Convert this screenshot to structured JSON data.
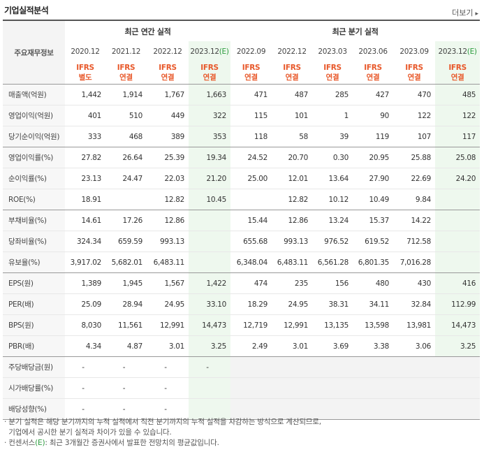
{
  "header": {
    "title": "기업실적분석",
    "more_label": "더보기",
    "more_arrow": "▸"
  },
  "table": {
    "corner_label": "주요재무정보",
    "annual_group": "최근 연간 실적",
    "quarter_group": "최근 분기 실적",
    "columns": [
      {
        "date": "2020.12",
        "type1": "IFRS",
        "type2": "별도",
        "estimate": false
      },
      {
        "date": "2021.12",
        "type1": "IFRS",
        "type2": "연결",
        "estimate": false
      },
      {
        "date": "2022.12",
        "type1": "IFRS",
        "type2": "연결",
        "estimate": false
      },
      {
        "date": "2023.12",
        "est_mark": "(E)",
        "type1": "IFRS",
        "type2": "연결",
        "estimate": true
      },
      {
        "date": "2022.09",
        "type1": "IFRS",
        "type2": "연결",
        "estimate": false
      },
      {
        "date": "2022.12",
        "type1": "IFRS",
        "type2": "연결",
        "estimate": false
      },
      {
        "date": "2023.03",
        "type1": "IFRS",
        "type2": "연결",
        "estimate": false
      },
      {
        "date": "2023.06",
        "type1": "IFRS",
        "type2": "연결",
        "estimate": false
      },
      {
        "date": "2023.09",
        "type1": "IFRS",
        "type2": "연결",
        "estimate": false
      },
      {
        "date": "2023.12",
        "est_mark": "(E)",
        "type1": "IFRS",
        "type2": "연결",
        "estimate": true
      }
    ],
    "rows": [
      {
        "label": "매출액(억원)",
        "values": [
          "1,442",
          "1,914",
          "1,767",
          "1,663",
          "471",
          "487",
          "285",
          "427",
          "470",
          "485"
        ]
      },
      {
        "label": "영업이익(억원)",
        "values": [
          "401",
          "510",
          "449",
          "322",
          "115",
          "101",
          "1",
          "90",
          "122",
          "122"
        ]
      },
      {
        "label": "당기순이익(억원)",
        "values": [
          "333",
          "468",
          "389",
          "353",
          "118",
          "58",
          "39",
          "119",
          "107",
          "117"
        ]
      },
      {
        "label": "영업이익률(%)",
        "values": [
          "27.82",
          "26.64",
          "25.39",
          "19.34",
          "24.52",
          "20.70",
          "0.30",
          "20.95",
          "25.88",
          "25.08"
        ]
      },
      {
        "label": "순이익률(%)",
        "values": [
          "23.13",
          "24.47",
          "22.03",
          "21.20",
          "25.00",
          "12.01",
          "13.64",
          "27.90",
          "22.69",
          "24.20"
        ]
      },
      {
        "label": "ROE(%)",
        "values": [
          "18.91",
          "",
          "12.82",
          "10.45",
          "",
          "12.82",
          "10.12",
          "10.49",
          "9.84",
          ""
        ]
      },
      {
        "label": "부채비율(%)",
        "values": [
          "14.61",
          "17.26",
          "12.86",
          "",
          "15.44",
          "12.86",
          "13.24",
          "15.37",
          "14.22",
          ""
        ]
      },
      {
        "label": "당좌비율(%)",
        "values": [
          "324.34",
          "659.59",
          "993.13",
          "",
          "655.68",
          "993.13",
          "976.52",
          "619.52",
          "712.58",
          ""
        ]
      },
      {
        "label": "유보율(%)",
        "values": [
          "3,917.02",
          "5,682.01",
          "6,483.11",
          "",
          "6,348.04",
          "6,483.11",
          "6,561.28",
          "6,801.35",
          "7,016.28",
          ""
        ]
      },
      {
        "label": "EPS(원)",
        "values": [
          "1,389",
          "1,945",
          "1,567",
          "1,422",
          "474",
          "235",
          "156",
          "480",
          "430",
          "416"
        ]
      },
      {
        "label": "PER(배)",
        "values": [
          "25.09",
          "28.94",
          "24.95",
          "33.10",
          "18.29",
          "24.95",
          "38.31",
          "34.11",
          "32.84",
          "112.99"
        ]
      },
      {
        "label": "BPS(원)",
        "values": [
          "8,030",
          "11,561",
          "12,991",
          "14,473",
          "12,719",
          "12,991",
          "13,135",
          "13,598",
          "13,981",
          "14,473"
        ]
      },
      {
        "label": "PBR(배)",
        "values": [
          "4.34",
          "4.87",
          "3.01",
          "3.25",
          "2.49",
          "3.01",
          "3.69",
          "3.38",
          "3.06",
          "3.25"
        ]
      },
      {
        "label": "주당배당금(원)",
        "values": [
          "-",
          "-",
          "-",
          "-"
        ]
      },
      {
        "label": "시가배당률(%)",
        "values": [
          "-",
          "-",
          "-",
          ""
        ]
      },
      {
        "label": "배당성향(%)",
        "values": [
          "-",
          "-",
          "-",
          ""
        ]
      }
    ]
  },
  "notes": {
    "line1": "· 분기 실적은 해당 분기까지의 누적 실적에서 직전 분기까지의 누적 실적을 차감하는 방식으로 계산되므로,",
    "line2": "  기업에서 공시한 분기 실적과 차이가 있을 수 있습니다.",
    "line3_pre": "· 컨센서스",
    "line3_mark": "(E)",
    "line3_post": ": 최근 3개월간 증권사에서 발표한 전망치의 평균값입니다."
  }
}
